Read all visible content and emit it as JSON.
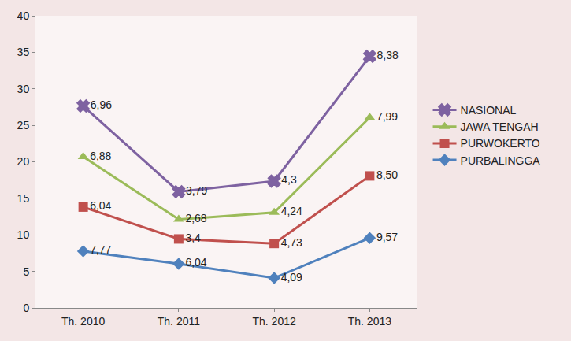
{
  "chart_data": {
    "type": "line",
    "stacked": true,
    "data_labels": true,
    "grid": false,
    "legend": "right",
    "categories": [
      "Th. 2010",
      "Th. 2011",
      "Th. 2012",
      "Th. 2013"
    ],
    "ylim": [
      0,
      40
    ],
    "yticks": [
      0,
      5,
      10,
      15,
      20,
      25,
      30,
      35,
      40
    ],
    "series": [
      {
        "name": "NASIONAL",
        "color": "#7e62a1",
        "marker": "x",
        "line_style": "solid",
        "values": [
          6.96,
          3.79,
          4.3,
          8.38
        ],
        "value_labels": [
          "6,96",
          "3,79",
          "4,3",
          "8,38"
        ]
      },
      {
        "name": "JAWA TENGAH",
        "color": "#9bbb59",
        "marker": "triangle-up",
        "line_style": "solid",
        "values": [
          6.88,
          2.68,
          4.24,
          7.99
        ],
        "value_labels": [
          "6,88",
          "2,68",
          "4,24",
          "7,99"
        ]
      },
      {
        "name": "PURWOKERTO",
        "color": "#c0504d",
        "marker": "square",
        "line_style": "solid",
        "values": [
          6.04,
          3.4,
          4.73,
          8.5
        ],
        "value_labels": [
          "6,04",
          "3,4",
          "4,73",
          "8,50"
        ]
      },
      {
        "name": "PURBALINGGA",
        "color": "#4f81bd",
        "marker": "diamond",
        "line_style": "solid",
        "values": [
          7.77,
          6.04,
          4.09,
          9.57
        ],
        "value_labels": [
          "7,77",
          "6,04",
          "4,09",
          "9,57"
        ]
      }
    ]
  }
}
